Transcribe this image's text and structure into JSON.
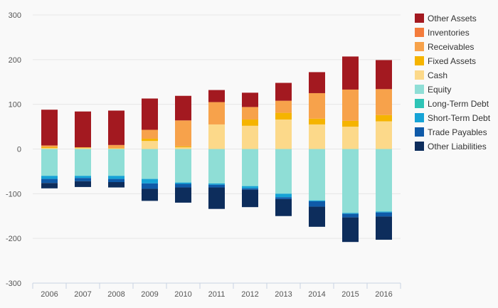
{
  "chart_data": {
    "type": "bar",
    "stacked": true,
    "categories": [
      "2006",
      "2007",
      "2008",
      "2009",
      "2010",
      "2011",
      "2012",
      "2013",
      "2014",
      "2015",
      "2016"
    ],
    "ylim": [
      -300,
      300
    ],
    "yticks": [
      -300,
      -200,
      -100,
      0,
      100,
      200,
      300
    ],
    "ytick_labels": [
      "-300",
      "-200",
      "-100",
      "0",
      "100",
      "200",
      "300"
    ],
    "grid": true,
    "legend_position": "right",
    "series": [
      {
        "name": "Other Assets",
        "group": "assets",
        "color": "#a31920",
        "values": [
          80,
          80,
          77,
          70,
          55,
          27,
          32,
          40,
          47,
          74,
          65
        ]
      },
      {
        "name": "Inventories",
        "group": "assets",
        "color": "#f47c3c",
        "values": [
          0,
          0,
          0,
          0,
          0,
          0,
          0,
          0,
          0,
          0,
          0
        ]
      },
      {
        "name": "Receivables",
        "group": "assets",
        "color": "#f7a24b",
        "values": [
          4,
          1,
          7,
          20,
          58,
          50,
          28,
          27,
          57,
          70,
          58
        ]
      },
      {
        "name": "Fixed Assets",
        "group": "assets",
        "color": "#f5b400",
        "values": [
          2,
          1,
          1,
          5,
          2,
          0,
          14,
          15,
          13,
          13,
          14
        ]
      },
      {
        "name": "Cash",
        "group": "assets",
        "color": "#fcd98a",
        "values": [
          2,
          2,
          1,
          18,
          4,
          55,
          52,
          66,
          55,
          50,
          62
        ]
      },
      {
        "name": "Equity",
        "group": "liabilities",
        "color": "#8fded6",
        "values": [
          -60,
          -60,
          -60,
          -67,
          -75,
          -77,
          -83,
          -100,
          -115,
          -143,
          -140
        ]
      },
      {
        "name": "Long-Term Debt",
        "group": "liabilities",
        "color": "#2ec4b6",
        "values": [
          0,
          0,
          0,
          0,
          0,
          0,
          0,
          0,
          0,
          0,
          0
        ]
      },
      {
        "name": "Short-Term Debt",
        "group": "liabilities",
        "color": "#16a3d6",
        "values": [
          -7,
          -5,
          -7,
          -10,
          -3,
          -3,
          -5,
          -8,
          -2,
          -2,
          -2
        ]
      },
      {
        "name": "Trade Payables",
        "group": "liabilities",
        "color": "#0f5aa8",
        "values": [
          -9,
          -7,
          -7,
          -12,
          -8,
          -6,
          -3,
          -4,
          -12,
          -8,
          -9
        ]
      },
      {
        "name": "Other Liabilities",
        "group": "liabilities",
        "color": "#0d2d5c",
        "values": [
          -12,
          -13,
          -12,
          -27,
          -34,
          -48,
          -39,
          -38,
          -45,
          -55,
          -52
        ]
      }
    ]
  }
}
